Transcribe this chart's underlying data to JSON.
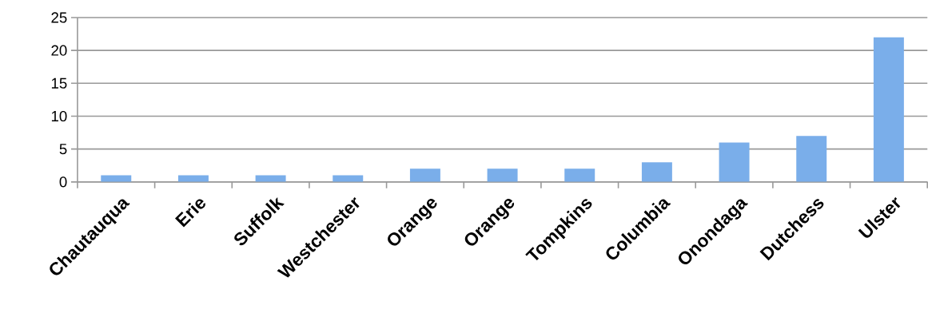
{
  "chart_data": {
    "type": "bar",
    "categories": [
      "Chautauqua",
      "Erie",
      "Suffolk",
      "Westchester",
      "Orange",
      "Orange",
      "Tompkins",
      "Columbia",
      "Onondaga",
      "Dutchess",
      "Ulster"
    ],
    "values": [
      1,
      1,
      1,
      1,
      2,
      2,
      2,
      3,
      6,
      7,
      22
    ],
    "color": "#7aaeea",
    "ylim": [
      0,
      25
    ],
    "yticks": [
      0,
      5,
      10,
      15,
      20,
      25
    ],
    "grid": "y"
  }
}
